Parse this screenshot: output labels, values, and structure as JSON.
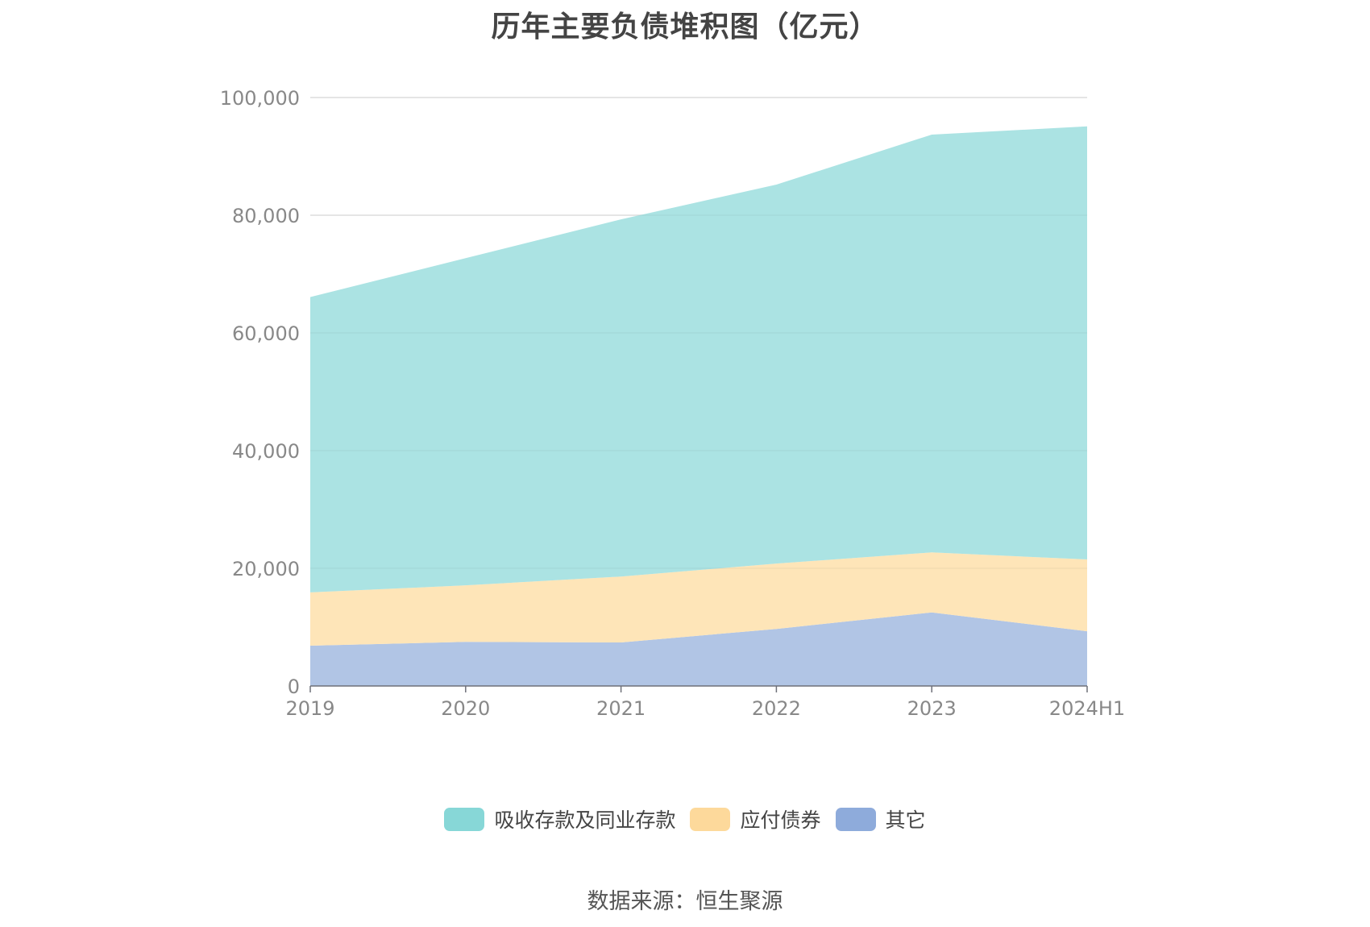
{
  "title": "历年主要负债堆积图（亿元）",
  "source": "数据来源：恒生聚源",
  "colors": {
    "deposits_area": "#ABE3E3",
    "bonds_area": "#FEE5B8",
    "other_area": "#B1C5E5",
    "deposits_legend": "#87D7D7",
    "bonds_legend": "#FDD99B",
    "other_legend": "#8EABDB",
    "grid": "#E6E6E6",
    "axis": "#6E7079",
    "text": "#888888"
  },
  "legend": [
    {
      "label": "吸收存款及同业存款",
      "color": "#87D7D7"
    },
    {
      "label": "应付债券",
      "color": "#FDD99B"
    },
    {
      "label": "其它",
      "color": "#8EABDB"
    }
  ],
  "y_ticks": [
    "0",
    "20,000",
    "40,000",
    "60,000",
    "80,000",
    "100,000"
  ],
  "x_ticks": [
    "2019",
    "2020",
    "2021",
    "2022",
    "2023",
    "2024H1"
  ],
  "chart_data": {
    "type": "area",
    "stacked": true,
    "title": "历年主要负债堆积图（亿元）",
    "xlabel": "",
    "ylabel": "",
    "categories": [
      "2019",
      "2020",
      "2021",
      "2022",
      "2023",
      "2024H1"
    ],
    "series": [
      {
        "name": "其它",
        "values": [
          6850,
          7500,
          7400,
          9700,
          12500,
          9300
        ]
      },
      {
        "name": "应付债券",
        "values": [
          9050,
          9600,
          11200,
          11100,
          10200,
          12200
        ]
      },
      {
        "name": "吸收存款及同业存款",
        "values": [
          50200,
          55600,
          60700,
          64400,
          71000,
          73600
        ]
      }
    ],
    "ylim": [
      0,
      100000
    ],
    "y_ticks": [
      0,
      20000,
      40000,
      60000,
      80000,
      100000
    ],
    "grid": true,
    "legend_position": "bottom",
    "source": "数据来源：恒生聚源"
  }
}
